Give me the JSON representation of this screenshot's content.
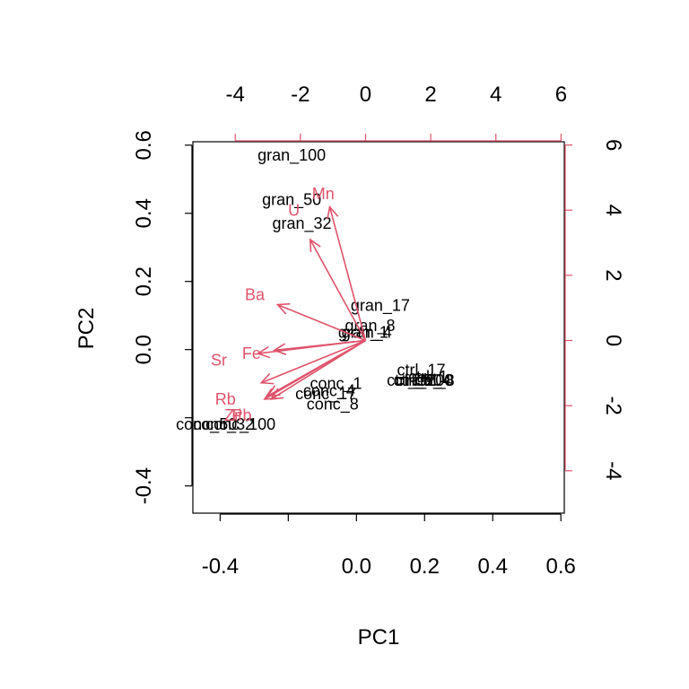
{
  "chart_data": {
    "type": "scatter",
    "subtype": "biplot",
    "title": "",
    "xlabel": "PC1",
    "ylabel": "PC2",
    "xlim": [
      -0.48,
      0.61
    ],
    "ylim": [
      -0.48,
      0.61
    ],
    "x_ticks": [
      -0.4,
      0.0,
      0.2,
      0.4,
      0.6
    ],
    "x_tick_labels": [
      "-0.4",
      "0.0",
      "0.2",
      "0.4",
      "0.6"
    ],
    "x_minor_ticks": [
      -0.2
    ],
    "y_ticks": [
      -0.4,
      0.0,
      0.2,
      0.4,
      0.6
    ],
    "y_tick_labels": [
      "-0.4",
      "0.0",
      "0.2",
      "0.4",
      "0.6"
    ],
    "y_minor_ticks": [
      -0.2
    ],
    "top_axis": {
      "color": "#DF536B",
      "lim": [
        -5.3,
        6.1
      ],
      "ticks": [
        -4,
        -2,
        0,
        2,
        4,
        6
      ],
      "tick_labels": [
        "-4",
        "-2",
        "0",
        "2",
        "4",
        "6"
      ]
    },
    "right_axis": {
      "color": "#DF536B",
      "lim": [
        -5.3,
        6.1
      ],
      "ticks": [
        -4,
        -2,
        0,
        2,
        4,
        6
      ],
      "tick_labels": [
        "-4",
        "-2",
        "0",
        "2",
        "4",
        "6"
      ]
    },
    "grid": false,
    "points": [
      {
        "label": "gran_100",
        "x": -0.19,
        "y": 0.57
      },
      {
        "label": "gran_50",
        "x": -0.19,
        "y": 0.44
      },
      {
        "label": "gran_32",
        "x": -0.16,
        "y": 0.37
      },
      {
        "label": "gran_17",
        "x": 0.07,
        "y": 0.13
      },
      {
        "label": "gran_8",
        "x": 0.04,
        "y": 0.07
      },
      {
        "label": "gran_4",
        "x": 0.03,
        "y": 0.05
      },
      {
        "label": "gran_1",
        "x": 0.02,
        "y": 0.05
      },
      {
        "label": "ctrl_17",
        "x": 0.19,
        "y": -0.06
      },
      {
        "label": "ctrl_1",
        "x": 0.21,
        "y": -0.08
      },
      {
        "label": "ctrl_32",
        "x": 0.16,
        "y": -0.09
      },
      {
        "label": "ctrl_50",
        "x": 0.18,
        "y": -0.09
      },
      {
        "label": "ctrl_100",
        "x": 0.2,
        "y": -0.09
      },
      {
        "label": "ctrl_4",
        "x": 0.22,
        "y": -0.09
      },
      {
        "label": "ctrl_8",
        "x": 0.23,
        "y": -0.09
      },
      {
        "label": "conc_1",
        "x": -0.06,
        "y": -0.1
      },
      {
        "label": "conc_4",
        "x": -0.08,
        "y": -0.12
      },
      {
        "label": "conc_17",
        "x": -0.09,
        "y": -0.13
      },
      {
        "label": "conc_8",
        "x": -0.07,
        "y": -0.16
      },
      {
        "label": "conc_100",
        "x": -0.34,
        "y": -0.22
      },
      {
        "label": "conc_32",
        "x": -0.39,
        "y": -0.22
      },
      {
        "label": "conc_50",
        "x": -0.44,
        "y": -0.22
      }
    ],
    "vectors": [
      {
        "label": "Mn",
        "x": -1.1,
        "y": 4.1
      },
      {
        "label": "U",
        "x": -1.7,
        "y": 3.1
      },
      {
        "label": "Ba",
        "x": -2.7,
        "y": 1.1
      },
      {
        "label": "Fe",
        "x": -2.8,
        "y": -0.3
      },
      {
        "label": "Sr",
        "x": -3.3,
        "y": -0.4
      },
      {
        "label": "Rb",
        "x": -3.2,
        "y": -1.3
      },
      {
        "label": "Ti",
        "x": -3.0,
        "y": -1.7
      },
      {
        "label": "Zr",
        "x": -3.1,
        "y": -1.8
      },
      {
        "label": "Pb",
        "x": -2.9,
        "y": -1.8
      }
    ],
    "vector_label_positions": [
      {
        "label": "Mn",
        "x": -1.3,
        "y": 4.5
      },
      {
        "label": "U",
        "x": -2.2,
        "y": 4.0
      },
      {
        "label": "Ba",
        "x": -3.4,
        "y": 1.4
      },
      {
        "label": "Fe",
        "x": -3.5,
        "y": -0.4
      },
      {
        "label": "Sr",
        "x": -4.5,
        "y": -0.6
      },
      {
        "label": "Rb",
        "x": -4.3,
        "y": -1.8
      },
      {
        "label": "Ti",
        "x": -4.0,
        "y": -2.3
      },
      {
        "label": "Zr",
        "x": -4.1,
        "y": -2.3
      },
      {
        "label": "Pb",
        "x": -3.8,
        "y": -2.3
      }
    ],
    "colors": {
      "points": "#000000",
      "vectors": "#DF536B"
    }
  }
}
